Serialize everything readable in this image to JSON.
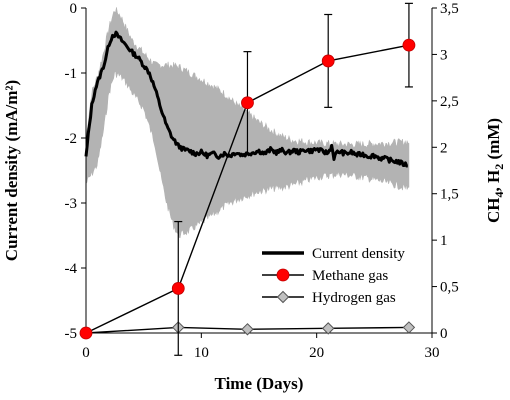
{
  "chart_data": {
    "type": "line",
    "xlabel": "Time (Days)",
    "ylabel_left": "Current density (mA/m²)",
    "ylabel_right_parts": [
      "CH",
      "4",
      ", H",
      "2",
      " (mM)"
    ],
    "xlim": [
      0,
      30
    ],
    "ylim_left": [
      -5,
      0
    ],
    "ylim_right": [
      0,
      3.5
    ],
    "x_ticks": [
      "0",
      "10",
      "20",
      "30"
    ],
    "y_ticks_left": [
      "-5",
      "-4",
      "-3",
      "-2",
      "-1",
      "0"
    ],
    "y_ticks_right": [
      "0",
      "0,5",
      "1",
      "1,5",
      "2",
      "2,5",
      "3",
      "3,5"
    ],
    "grid": false,
    "legend_position": "lower-right",
    "series": [
      {
        "name": "Current density",
        "axis": "left",
        "color": "#000000",
        "points": [
          [
            0,
            -2.3
          ],
          [
            0.2,
            -1.95
          ],
          [
            0.5,
            -1.5
          ],
          [
            0.8,
            -1.25
          ],
          [
            1.2,
            -1.05
          ],
          [
            1.6,
            -0.85
          ],
          [
            2.0,
            -0.55
          ],
          [
            2.3,
            -0.42
          ],
          [
            2.6,
            -0.4
          ],
          [
            3.0,
            -0.48
          ],
          [
            3.5,
            -0.58
          ],
          [
            4.0,
            -0.68
          ],
          [
            4.5,
            -0.76
          ],
          [
            5.0,
            -0.88
          ],
          [
            5.5,
            -1.0
          ],
          [
            6.0,
            -1.25
          ],
          [
            6.5,
            -1.55
          ],
          [
            7.0,
            -1.82
          ],
          [
            7.5,
            -2.0
          ],
          [
            8.0,
            -2.12
          ],
          [
            8.5,
            -2.18
          ],
          [
            9.0,
            -2.2
          ],
          [
            9.5,
            -2.24
          ],
          [
            10.0,
            -2.22
          ],
          [
            10.5,
            -2.27
          ],
          [
            11.0,
            -2.24
          ],
          [
            11.5,
            -2.28
          ],
          [
            12.0,
            -2.24
          ],
          [
            12.5,
            -2.27
          ],
          [
            13.0,
            -2.22
          ],
          [
            13.5,
            -2.26
          ],
          [
            14.0,
            -2.24
          ],
          [
            14.5,
            -2.22
          ],
          [
            15.0,
            -2.2
          ],
          [
            15.5,
            -2.24
          ],
          [
            16.0,
            -2.18
          ],
          [
            16.5,
            -2.22
          ],
          [
            17.0,
            -2.19
          ],
          [
            17.5,
            -2.23
          ],
          [
            18.0,
            -2.19
          ],
          [
            18.5,
            -2.22
          ],
          [
            19.0,
            -2.18
          ],
          [
            19.5,
            -2.2
          ],
          [
            20.0,
            -2.17
          ],
          [
            20.5,
            -2.21
          ],
          [
            21.0,
            -2.23
          ],
          [
            21.3,
            -2.12
          ],
          [
            21.5,
            -2.3
          ],
          [
            21.8,
            -2.22
          ],
          [
            22.0,
            -2.21
          ],
          [
            22.5,
            -2.24
          ],
          [
            23.0,
            -2.22
          ],
          [
            23.5,
            -2.26
          ],
          [
            24.0,
            -2.25
          ],
          [
            24.5,
            -2.28
          ],
          [
            25.0,
            -2.27
          ],
          [
            25.5,
            -2.31
          ],
          [
            26.0,
            -2.32
          ],
          [
            26.5,
            -2.35
          ],
          [
            27.0,
            -2.36
          ],
          [
            27.5,
            -2.4
          ],
          [
            28.0,
            -2.42
          ]
        ]
      },
      {
        "name": "Methane gas",
        "axis": "right",
        "color": "#ff0000",
        "marker": "circle",
        "points": [
          [
            0,
            0
          ],
          [
            8,
            0.48
          ],
          [
            14,
            2.48
          ],
          [
            21,
            2.93
          ],
          [
            28,
            3.1
          ]
        ],
        "errors": [
          0,
          0.72,
          0.55,
          0.5,
          0.45
        ]
      },
      {
        "name": "Hydrogen gas",
        "axis": "right",
        "color": "#c0c0c0",
        "marker": "diamond",
        "points": [
          [
            0,
            0
          ],
          [
            8,
            0.06
          ],
          [
            14,
            0.04
          ],
          [
            21,
            0.05
          ],
          [
            28,
            0.06
          ]
        ]
      }
    ],
    "variability_band": {
      "axis": "left",
      "color": "#b3b3b3",
      "upper": [
        [
          0,
          -2.0
        ],
        [
          0.5,
          -1.3
        ],
        [
          1.0,
          -1.05
        ],
        [
          1.5,
          -0.7
        ],
        [
          2.0,
          -0.3
        ],
        [
          2.5,
          -0.02
        ],
        [
          3.0,
          -0.12
        ],
        [
          3.5,
          -0.32
        ],
        [
          4.0,
          -0.5
        ],
        [
          5.0,
          -0.7
        ],
        [
          6.0,
          -0.88
        ],
        [
          7.0,
          -0.88
        ],
        [
          8.0,
          -0.9
        ],
        [
          9.0,
          -1.0
        ],
        [
          10.0,
          -1.1
        ],
        [
          11.0,
          -1.2
        ],
        [
          12.0,
          -1.32
        ],
        [
          13.0,
          -1.48
        ],
        [
          14.0,
          -1.62
        ],
        [
          15.0,
          -1.76
        ],
        [
          16.0,
          -1.88
        ],
        [
          17.0,
          -1.98
        ],
        [
          18.0,
          -2.04
        ],
        [
          20.0,
          -2.08
        ],
        [
          22.0,
          -2.1
        ],
        [
          24.0,
          -2.1
        ],
        [
          26.0,
          -2.08
        ],
        [
          28.0,
          -2.06
        ]
      ],
      "lower": [
        [
          0,
          -2.7
        ],
        [
          0.5,
          -2.55
        ],
        [
          1.0,
          -2.4
        ],
        [
          1.5,
          -1.9
        ],
        [
          2.0,
          -1.3
        ],
        [
          2.5,
          -1.0
        ],
        [
          3.0,
          -1.05
        ],
        [
          3.5,
          -1.15
        ],
        [
          4.0,
          -1.3
        ],
        [
          5.0,
          -1.55
        ],
        [
          6.0,
          -2.1
        ],
        [
          6.5,
          -2.6
        ],
        [
          7.0,
          -3.0
        ],
        [
          7.5,
          -3.3
        ],
        [
          8.0,
          -3.5
        ],
        [
          9.0,
          -3.42
        ],
        [
          10.0,
          -3.3
        ],
        [
          11.0,
          -3.18
        ],
        [
          12.0,
          -3.05
        ],
        [
          13.0,
          -2.95
        ],
        [
          14.0,
          -2.88
        ],
        [
          15.0,
          -2.82
        ],
        [
          16.0,
          -2.78
        ],
        [
          17.0,
          -2.76
        ],
        [
          18.0,
          -2.72
        ],
        [
          20.0,
          -2.6
        ],
        [
          22.0,
          -2.55
        ],
        [
          24.0,
          -2.6
        ],
        [
          26.0,
          -2.68
        ],
        [
          28.0,
          -2.78
        ]
      ]
    }
  }
}
